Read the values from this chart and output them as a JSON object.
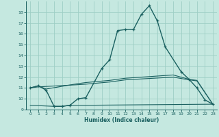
{
  "xlabel": "Humidex (Indice chaleur)",
  "bg_color": "#c5e8e0",
  "grid_color": "#9ecec5",
  "line_color": "#1a6060",
  "xlim": [
    -0.5,
    23.5
  ],
  "ylim": [
    9,
    19
  ],
  "xticks": [
    0,
    1,
    2,
    3,
    4,
    5,
    6,
    7,
    8,
    9,
    10,
    11,
    12,
    13,
    14,
    15,
    16,
    17,
    18,
    19,
    20,
    21,
    22,
    23
  ],
  "yticks": [
    9,
    10,
    11,
    12,
    13,
    14,
    15,
    16,
    17,
    18
  ],
  "main_line_x": [
    0,
    1,
    2,
    3,
    4,
    5,
    6,
    7,
    9,
    10,
    11,
    12,
    13,
    14,
    15,
    16,
    17,
    19,
    20,
    21,
    22,
    23
  ],
  "main_line_y": [
    11.0,
    11.2,
    10.8,
    9.3,
    9.3,
    9.4,
    10.0,
    10.1,
    12.8,
    13.6,
    16.3,
    16.4,
    16.4,
    17.8,
    18.6,
    17.2,
    14.8,
    12.5,
    11.8,
    11.0,
    9.9,
    9.5
  ],
  "flat_low_x": [
    0,
    3,
    4,
    5,
    6,
    7,
    23
  ],
  "flat_low_y": [
    9.4,
    9.3,
    9.3,
    9.4,
    9.4,
    9.4,
    9.5
  ],
  "rising1_x": [
    0,
    1,
    2,
    6,
    7,
    10,
    11,
    12,
    18,
    20,
    21,
    23
  ],
  "rising1_y": [
    11.0,
    11.2,
    10.9,
    11.4,
    11.5,
    11.7,
    11.8,
    11.9,
    12.2,
    11.8,
    11.7,
    9.5
  ],
  "rising2_x": [
    0,
    1,
    6,
    7,
    10,
    11,
    12,
    18,
    20,
    21,
    23
  ],
  "rising2_y": [
    11.0,
    11.1,
    11.3,
    11.35,
    11.55,
    11.65,
    11.75,
    12.0,
    11.75,
    11.65,
    9.5
  ]
}
